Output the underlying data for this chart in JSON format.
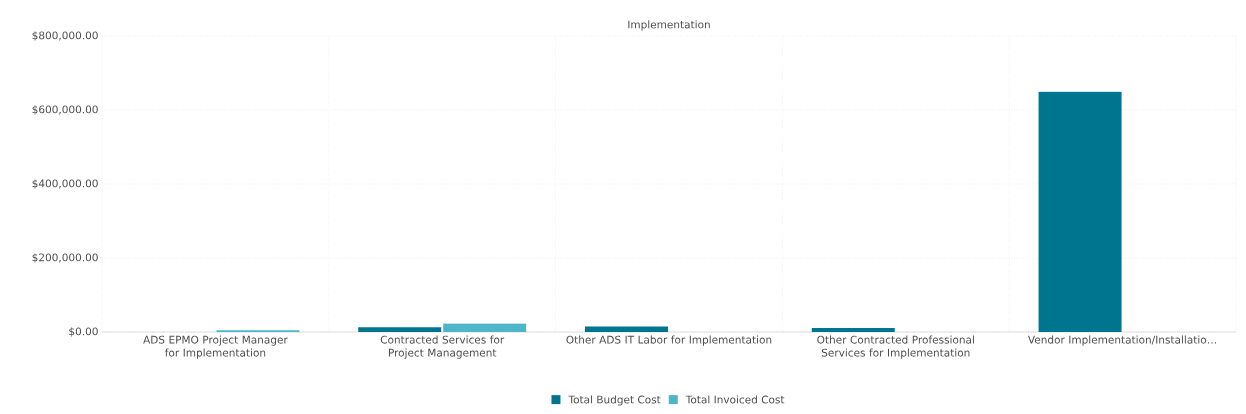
{
  "chart_data": {
    "type": "bar",
    "title": "Implementation",
    "categories": [
      "ADS EPMO Project Manager for Implementation",
      "Contracted Services for Project Management",
      "Other ADS IT Labor for Implementation",
      "Other Contracted Professional Services for Implementation",
      "Vendor Implementation/Installatio…"
    ],
    "series": [
      {
        "name": "Total Budget Cost",
        "color": "#00758f",
        "values": [
          0,
          13000,
          15000,
          11000,
          649000
        ]
      },
      {
        "name": "Total Invoiced Cost",
        "color": "#4db6c8",
        "values": [
          5000,
          23000,
          0,
          null,
          0
        ]
      }
    ],
    "ylim": [
      0,
      800000
    ],
    "yticks": [
      {
        "value": 0,
        "label": "$0.00"
      },
      {
        "value": 200000,
        "label": "$200,000.00"
      },
      {
        "value": 400000,
        "label": "$400,000.00"
      },
      {
        "value": 600000,
        "label": "$600,000.00"
      },
      {
        "value": 800000,
        "label": "$800,000.00"
      }
    ],
    "grid": true,
    "legend": "bottom"
  }
}
